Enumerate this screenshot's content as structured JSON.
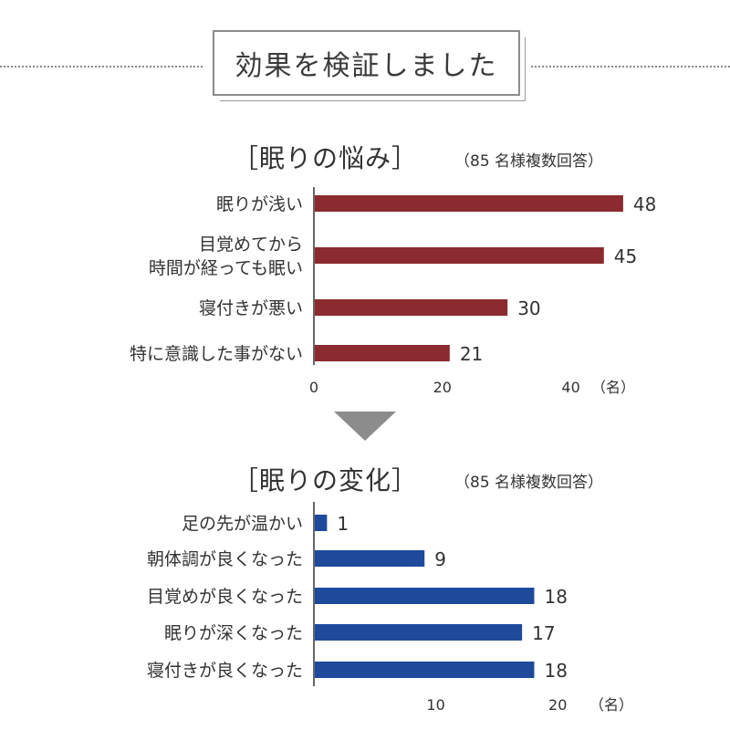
{
  "header": {
    "title": "効果を検証しました"
  },
  "colors": {
    "chart1_bar": "#8b2a2f",
    "chart2_bar": "#1e4a9c",
    "axis": "#333333",
    "arrow": "#8c8c8c"
  },
  "chart_data": [
    {
      "type": "bar",
      "orientation": "horizontal",
      "title": "［眠りの悩み］",
      "note": "（85 名様複数回答）",
      "categories": [
        "眠りが浅い",
        "目覚めてから\n時間が経っても眠い",
        "寝付きが悪い",
        "特に意識した事がない"
      ],
      "values": [
        48,
        45,
        30,
        21
      ],
      "value_labels": [
        "48",
        "45",
        "30",
        "21"
      ],
      "xlim": [
        0,
        50
      ],
      "ticks": [
        0,
        20,
        40
      ],
      "tick_labels": [
        "0",
        "20",
        "40"
      ],
      "unit": "（名）",
      "grid": false
    },
    {
      "type": "bar",
      "orientation": "horizontal",
      "title": "［眠りの変化］",
      "note": "（85 名様複数回答）",
      "categories": [
        "足の先が温かい",
        "朝体調が良くなった",
        "目覚めが良くなった",
        "眠りが深くなった",
        "寝付きが良くなった"
      ],
      "values": [
        1,
        9,
        18,
        17,
        18
      ],
      "value_labels": [
        "1",
        "9",
        "18",
        "17",
        "18"
      ],
      "xlim": [
        0,
        22
      ],
      "ticks": [
        10,
        20
      ],
      "tick_labels": [
        "10",
        "20"
      ],
      "unit": "（名）",
      "grid": false
    }
  ]
}
